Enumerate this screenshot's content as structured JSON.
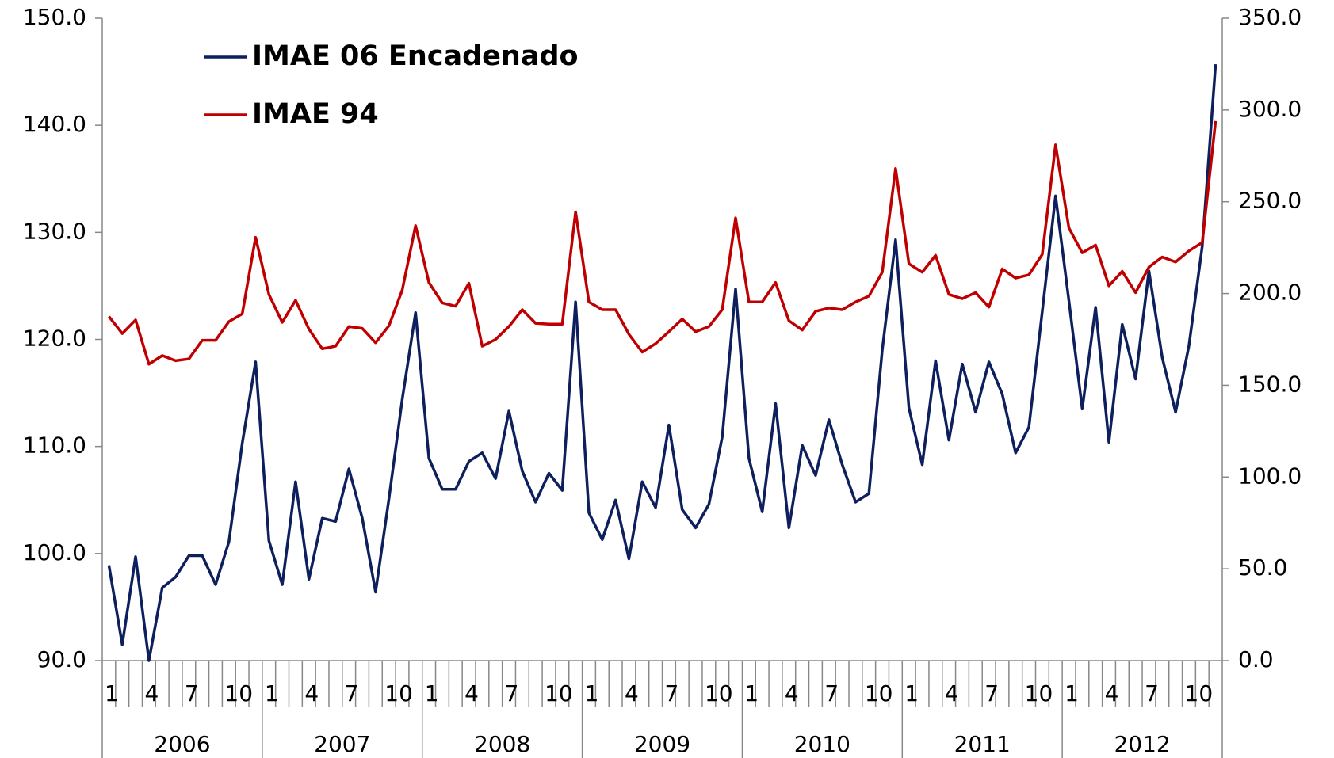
{
  "chart_data": {
    "type": "line",
    "legend": "upper left",
    "categories": [
      "1",
      null,
      null,
      "4",
      null,
      null,
      "7",
      null,
      null,
      "10",
      null,
      null,
      "1",
      null,
      null,
      "4",
      null,
      null,
      "7",
      null,
      null,
      "10",
      null,
      null,
      "1",
      null,
      null,
      "4",
      null,
      null,
      "7",
      null,
      null,
      "10",
      null,
      null,
      "1",
      null,
      null,
      "4",
      null,
      null,
      "7",
      null,
      null,
      "10",
      null,
      null,
      "1",
      null,
      null,
      "4",
      null,
      null,
      "7",
      null,
      null,
      "10",
      null,
      null,
      "1",
      null,
      null,
      "4",
      null,
      null,
      "7",
      null,
      null,
      "10",
      null,
      null,
      "1",
      null,
      null,
      "4",
      null,
      null,
      "7",
      null,
      null,
      "10",
      null,
      null
    ],
    "years": [
      "2006",
      "2007",
      "2008",
      "2009",
      "2010",
      "2011",
      "2012"
    ],
    "ylim": [
      90,
      150
    ],
    "yticks": [
      {
        "value": 90,
        "label": "90.0"
      },
      {
        "value": 100,
        "label": "100.0"
      },
      {
        "value": 110,
        "label": "110.0"
      },
      {
        "value": 120,
        "label": "120.0"
      },
      {
        "value": 130,
        "label": "130.0"
      },
      {
        "value": 140,
        "label": "140.0"
      },
      {
        "value": 150,
        "label": "150.0"
      }
    ],
    "y2lim": [
      0,
      350
    ],
    "y2ticks": [
      {
        "value": 0,
        "label": "0.0"
      },
      {
        "value": 50,
        "label": "50.0"
      },
      {
        "value": 100,
        "label": "100.0"
      },
      {
        "value": 150,
        "label": "150.0"
      },
      {
        "value": 200,
        "label": "200.0"
      },
      {
        "value": 250,
        "label": "250.0"
      },
      {
        "value": 300,
        "label": "300.0"
      },
      {
        "value": 350,
        "label": "350.0"
      }
    ],
    "series": [
      {
        "name": "IMAE 06 Encadenado",
        "color": "#0d1f5c",
        "values": [
          98.9,
          91.5,
          99.7,
          90.0,
          96.8,
          97.8,
          99.8,
          99.8,
          97.1,
          101.1,
          110.3,
          117.9,
          101.2,
          97.1,
          106.7,
          97.6,
          103.3,
          103.0,
          107.9,
          103.3,
          96.4,
          105.1,
          114.4,
          122.5,
          108.9,
          106.0,
          106.0,
          108.6,
          109.4,
          107.0,
          113.3,
          107.7,
          104.8,
          107.5,
          105.9,
          123.5,
          103.8,
          101.3,
          105.0,
          99.5,
          106.7,
          104.3,
          112.0,
          104.1,
          102.4,
          104.6,
          110.9,
          124.7,
          108.9,
          103.9,
          114.0,
          102.4,
          110.1,
          107.3,
          112.5,
          108.3,
          104.8,
          105.6,
          119.0,
          129.3,
          113.6,
          108.3,
          118.0,
          110.6,
          117.7,
          113.2,
          117.9,
          114.9,
          109.4,
          111.8,
          122.6,
          133.4,
          123.6,
          113.5,
          123.0,
          110.4,
          121.4,
          116.3,
          126.4,
          118.3,
          113.2,
          119.4,
          128.7,
          145.7
        ]
      },
      {
        "name": "IMAE 94",
        "color": "#c00000",
        "axis": "y2",
        "values": [
          187.5,
          178.2,
          185.6,
          161.5,
          166.2,
          163.4,
          164.4,
          174.5,
          174.5,
          184.7,
          188.9,
          230.6,
          199.5,
          184.3,
          196.3,
          180.6,
          169.9,
          171.3,
          182.0,
          181.0,
          173.2,
          182.4,
          201.9,
          237.0,
          206.0,
          194.9,
          193.1,
          205.6,
          171.3,
          175.0,
          182.0,
          191.2,
          183.8,
          183.3,
          183.3,
          244.5,
          195.4,
          191.2,
          191.2,
          177.8,
          168.1,
          172.7,
          179.2,
          186.1,
          179.2,
          182.0,
          191.2,
          241.2,
          195.4,
          195.4,
          206.0,
          185.2,
          180.1,
          190.3,
          192.1,
          191.2,
          195.4,
          198.6,
          211.6,
          268.1,
          216.2,
          211.6,
          220.8,
          199.5,
          197.2,
          200.5,
          192.6,
          213.4,
          208.4,
          210.2,
          221.3,
          281.0,
          235.7,
          222.2,
          226.4,
          204.2,
          212.1,
          200.5,
          214.4,
          219.9,
          217.2,
          223.2,
          227.8,
          294.0
        ]
      }
    ]
  }
}
